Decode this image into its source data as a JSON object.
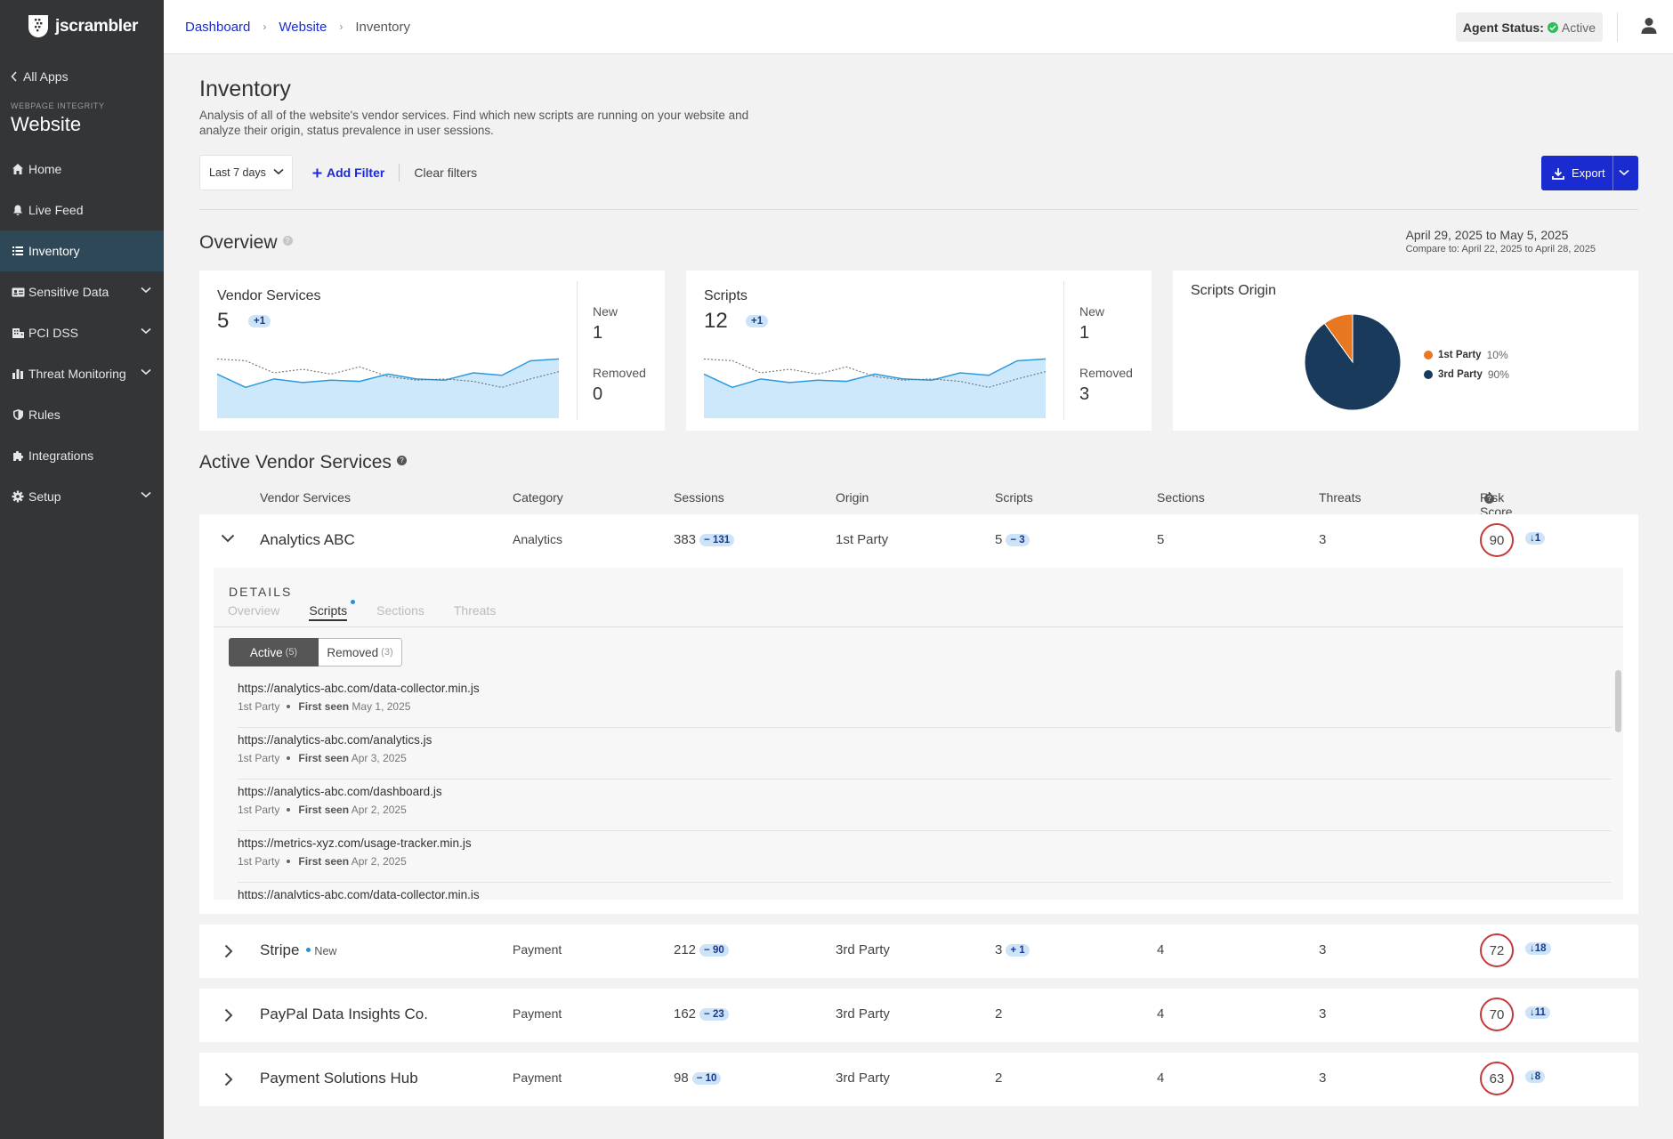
{
  "app": {
    "name": "jscrambler"
  },
  "sidebar": {
    "back_label": "All Apps",
    "section_caption": "WEBPAGE INTEGRITY",
    "section_title": "Website",
    "items": [
      {
        "label": "Home",
        "icon": "home-icon"
      },
      {
        "label": "Live Feed",
        "icon": "bell-icon"
      },
      {
        "label": "Inventory",
        "icon": "list-icon",
        "active": true
      },
      {
        "label": "Sensitive Data",
        "icon": "id-card-icon",
        "expandable": true
      },
      {
        "label": "PCI DSS",
        "icon": "building-icon",
        "expandable": true
      },
      {
        "label": "Threat Monitoring",
        "icon": "bar-chart-icon",
        "expandable": true
      },
      {
        "label": "Rules",
        "icon": "shield-icon"
      },
      {
        "label": "Integrations",
        "icon": "puzzle-icon"
      },
      {
        "label": "Setup",
        "icon": "gear-icon",
        "expandable": true
      }
    ]
  },
  "topbar": {
    "breadcrumbs": [
      "Dashboard",
      "Website",
      "Inventory"
    ],
    "agent_status_label": "Agent Status:",
    "agent_status_value": "Active"
  },
  "page": {
    "title": "Inventory",
    "description": "Analysis of all of the website's vendor services. Find which new scripts are running on your website and analyze their origin, status prevalence in user sessions."
  },
  "filters": {
    "range": "Last 7 days",
    "add_filter": "Add Filter",
    "clear_filters": "Clear filters",
    "export": "Export"
  },
  "overview": {
    "title": "Overview",
    "date_range": "April 29, 2025 to May 5, 2025",
    "compare_label": "Compare to:",
    "compare_range": "April 22, 2025 to April 28, 2025",
    "vendor_card": {
      "title": "Vendor Services",
      "value": "5",
      "delta": "+1",
      "new_label": "New",
      "new_value": "1",
      "removed_label": "Removed",
      "removed_value": "0"
    },
    "scripts_card": {
      "title": "Scripts",
      "value": "12",
      "delta": "+1",
      "new_label": "New",
      "new_value": "1",
      "removed_label": "Removed",
      "removed_value": "3"
    },
    "origin_card": {
      "title": "Scripts Origin"
    }
  },
  "chart_data": [
    {
      "type": "area",
      "series": [
        {
          "values": [
            0.7,
            0.48,
            0.62,
            0.56,
            0.6,
            0.58,
            0.7,
            0.62,
            0.6,
            0.72,
            0.68,
            0.92,
            0.95
          ]
        },
        {
          "values": [
            0.95,
            0.92,
            0.72,
            0.78,
            0.7,
            0.82,
            0.66,
            0.6,
            0.62,
            0.58,
            0.48,
            0.62,
            0.74
          ],
          "style": "dotted"
        }
      ],
      "ylim": [
        0,
        1
      ]
    },
    {
      "type": "area",
      "series": [
        {
          "values": [
            0.7,
            0.48,
            0.62,
            0.56,
            0.6,
            0.58,
            0.7,
            0.62,
            0.6,
            0.72,
            0.68,
            0.92,
            0.95
          ]
        },
        {
          "values": [
            0.95,
            0.92,
            0.72,
            0.78,
            0.7,
            0.82,
            0.66,
            0.6,
            0.62,
            0.58,
            0.48,
            0.62,
            0.74
          ],
          "style": "dotted"
        }
      ],
      "ylim": [
        0,
        1
      ]
    },
    {
      "type": "pie",
      "slices": [
        {
          "label": "1st Party",
          "value": 10,
          "pct": "10%",
          "color": "#e87722"
        },
        {
          "label": "3rd Party",
          "value": 90,
          "pct": "90%",
          "color": "#1a3a5c"
        }
      ]
    }
  ],
  "vendors": {
    "title": "Active Vendor Services",
    "columns": [
      "Vendor Services",
      "Category",
      "Sessions",
      "Origin",
      "Scripts",
      "Sections",
      "Threats",
      "Risk Score"
    ],
    "rows": [
      {
        "name": "Analytics ABC",
        "category": "Analytics",
        "sessions": "383",
        "sessions_delta": "− 131",
        "origin": "1st Party",
        "scripts": "5",
        "scripts_delta": "− 3",
        "sections": "5",
        "threats": "3",
        "risk": "90",
        "risk_delta": "↓1",
        "expanded": true
      },
      {
        "name": "Stripe",
        "tag": "New",
        "category": "Payment",
        "sessions": "212",
        "sessions_delta": "− 90",
        "origin": "3rd Party",
        "scripts": "3",
        "scripts_delta": "+ 1",
        "sections": "4",
        "threats": "3",
        "risk": "72",
        "risk_delta": "↓18"
      },
      {
        "name": "PayPal Data Insights Co.",
        "category": "Payment",
        "sessions": "162",
        "sessions_delta": "− 23",
        "origin": "3rd Party",
        "scripts": "2",
        "sections": "4",
        "threats": "3",
        "risk": "70",
        "risk_delta": "↓11"
      },
      {
        "name": "Payment Solutions Hub",
        "category": "Payment",
        "sessions": "98",
        "sessions_delta": "− 10",
        "origin": "3rd Party",
        "scripts": "2",
        "sections": "4",
        "threats": "3",
        "risk": "63",
        "risk_delta": "↓8"
      }
    ]
  },
  "details": {
    "label": "DETAILS",
    "tabs": [
      "Overview",
      "Scripts",
      "Sections",
      "Threats"
    ],
    "active_tab": "Scripts",
    "segments": {
      "active_label": "Active",
      "active_count": "(5)",
      "removed_label": "Removed",
      "removed_count": "(3)"
    },
    "scripts": [
      {
        "url": "https://analytics-abc.com/data-collector.min.js",
        "origin": "1st Party",
        "seen_label": "First seen",
        "seen": "May 1, 2025",
        "new": true
      },
      {
        "url": "https://analytics-abc.com/analytics.js",
        "origin": "1st Party",
        "seen_label": "First seen",
        "seen": "Apr 3, 2025"
      },
      {
        "url": "https://analytics-abc.com/dashboard.js",
        "origin": "1st Party",
        "seen_label": "First seen",
        "seen": "Apr 2, 2025"
      },
      {
        "url": "https://metrics-xyz.com/usage-tracker.min.js",
        "origin": "1st Party",
        "seen_label": "First seen",
        "seen": "Apr 2, 2025"
      },
      {
        "url": "https://analytics-abc.com/data-collector.min.js",
        "origin": "",
        "seen_label": "",
        "seen": ""
      }
    ]
  }
}
